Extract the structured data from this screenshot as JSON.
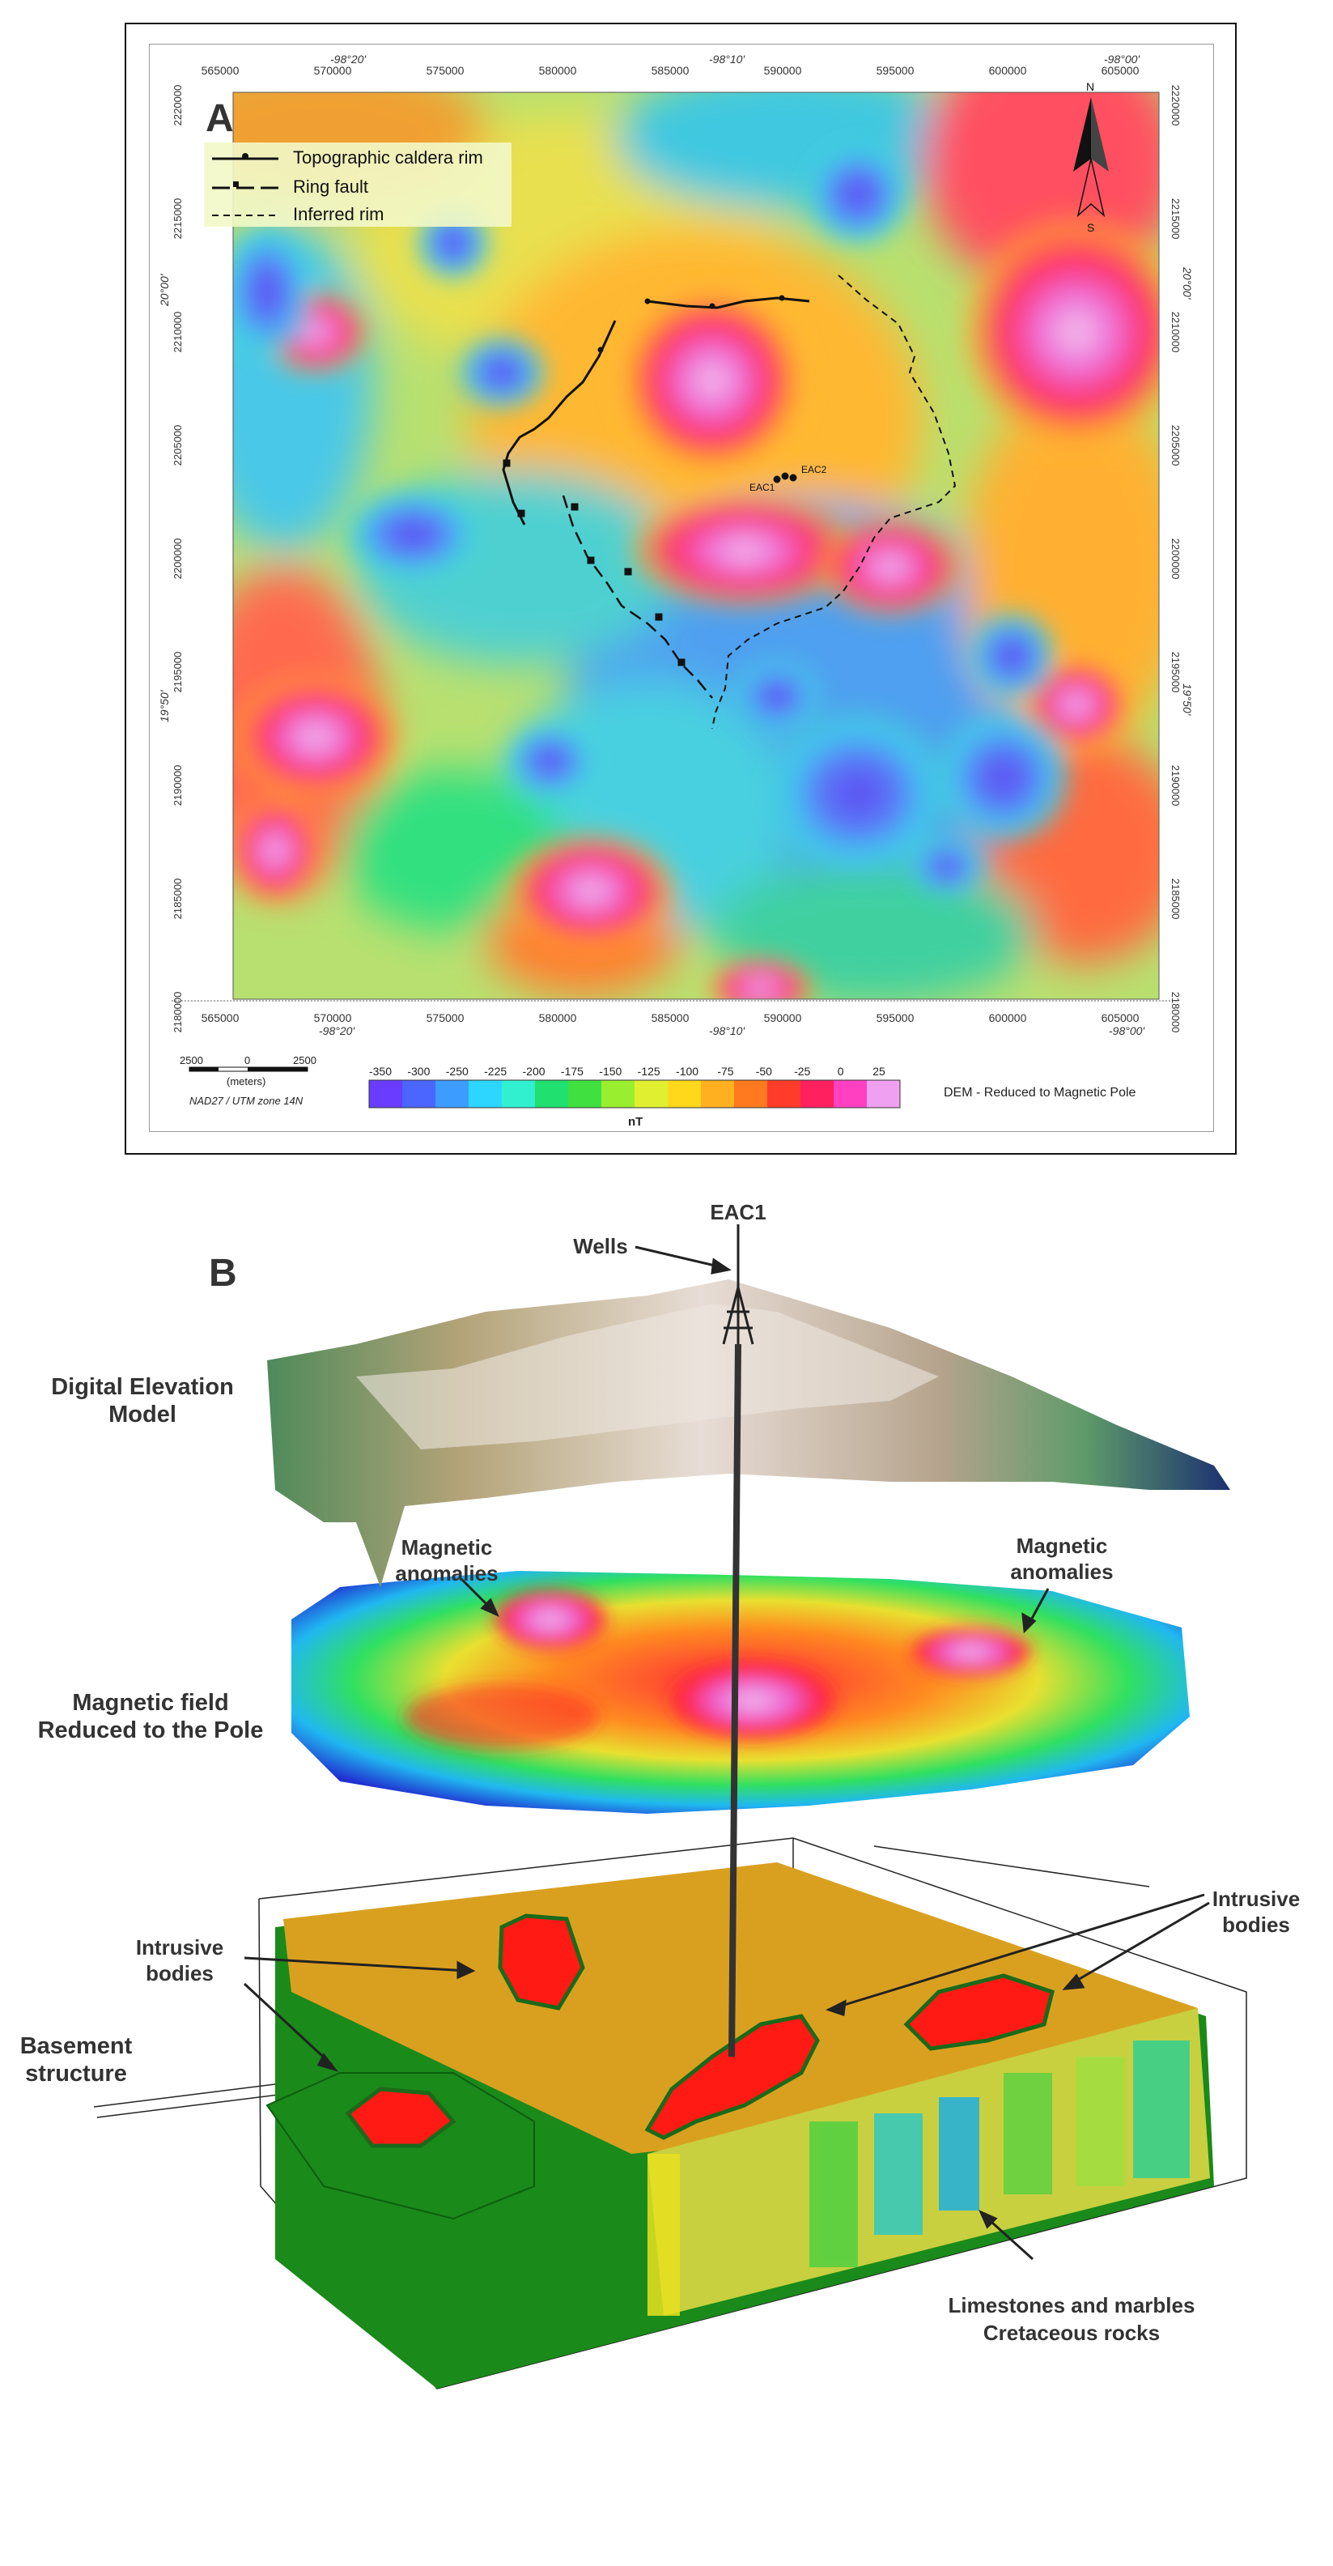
{
  "panel_a": {
    "panel_letter": "A",
    "legend": {
      "items": [
        {
          "label": "Topographic caldera rim",
          "style": "solid"
        },
        {
          "label": "Ring fault",
          "style": "dashed-tick"
        },
        {
          "label": "Inferred rim",
          "style": "dashed"
        }
      ]
    },
    "north_arrow": {
      "n": "N",
      "s": "S"
    },
    "x_ticks_top": [
      "565000",
      "570000",
      "575000",
      "580000",
      "585000",
      "590000",
      "595000",
      "600000",
      "605000"
    ],
    "x_ticks_bottom": [
      "565000",
      "570000",
      "575000",
      "580000",
      "585000",
      "590000",
      "595000",
      "600000",
      "605000"
    ],
    "y_ticks": [
      "2220000",
      "2215000",
      "2210000",
      "2205000",
      "2200000",
      "2195000",
      "2190000",
      "2185000",
      "2180000"
    ],
    "lon_labels_top": [
      "-98°20'",
      "-98°10'",
      "-98°00'"
    ],
    "lon_labels_bottom": [
      "-98°20'",
      "-98°10'",
      "-98°00'"
    ],
    "lat_labels": [
      "20°00'",
      "19°50'"
    ],
    "wells": [
      "EAC1",
      "EAC2"
    ],
    "scale_bar": {
      "labels": [
        "2500",
        "0",
        "2500"
      ],
      "unit": "(meters)",
      "projection": "NAD27 / UTM zone 14N"
    },
    "colorbar": {
      "tick_labels": [
        "-350",
        "-300",
        "-250",
        "-225",
        "-200",
        "-175",
        "-150",
        "-125",
        "-100",
        "-75",
        "-50",
        "-25",
        "0",
        "25"
      ],
      "unit": "nT",
      "colors": [
        "#6a3cff",
        "#4a66ff",
        "#3c9cff",
        "#2cd6ff",
        "#30f0d0",
        "#20e070",
        "#40e040",
        "#9aee30",
        "#e0f030",
        "#ffd81c",
        "#ffb020",
        "#ff7a1e",
        "#ff3c2a",
        "#ff2060",
        "#ff40c0",
        "#f0a0f0"
      ]
    },
    "caption": "DEM - Reduced to Magnetic Pole"
  },
  "panel_b": {
    "panel_letter": "B",
    "labels": {
      "eac1": "EAC1",
      "wells": "Wells",
      "dem_1": "Digital Elevation",
      "dem_2": "Model",
      "mag_anom_left_1": "Magnetic",
      "mag_anom_left_2": "anomalies",
      "mag_anom_right_1": "Magnetic",
      "mag_anom_right_2": "anomalies",
      "mag_field_1": "Magnetic field",
      "mag_field_2": "Reduced to the Pole",
      "intrusive_left_1": "Intrusive",
      "intrusive_left_2": "bodies",
      "intrusive_right_1": "Intrusive",
      "intrusive_right_2": "bodies",
      "basement_1": "Basement",
      "basement_2": "structure",
      "limestone_1": "Limestones and marbles",
      "limestone_2": "Cretaceous rocks"
    }
  }
}
